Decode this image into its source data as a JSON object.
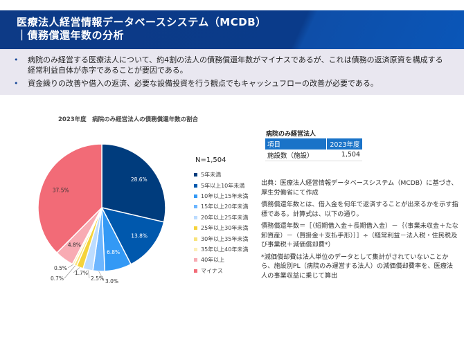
{
  "header": {
    "title_line1": "医療法人経営情報データベースシステム（MCDB）",
    "title_line2": "｜債務償還年数の分析"
  },
  "bullets": [
    "病院のみ経営する医療法人について、約4割の法人の債務償還年数がマイナスであるが、これは債務の返済原資を構成する経常利益自体が赤字であることが要因である。",
    "資金繰りの改善や借入の返済、必要な設備投資を行う観点でもキャッシュフローの改善が必要である。"
  ],
  "chart_data": {
    "type": "pie",
    "title": "2023年度　病院のみ経営法人の債務償還年数の割合",
    "annotation": "N=1,504",
    "categories": [
      "5年未満",
      "5年以上10年未満",
      "10年以上15年未満",
      "15年以上20年未満",
      "20年以上25年未満",
      "25年以上30年未満",
      "30年以上35年未満",
      "35年以上40年未満",
      "40年以上",
      "マイナス"
    ],
    "values": [
      28.6,
      13.8,
      6.8,
      3.0,
      2.5,
      1.7,
      0.7,
      0.5,
      4.8,
      37.5
    ],
    "labels": [
      "28.6%",
      "13.8%",
      "6.8%",
      "3.0%",
      "2.5%",
      "1.7%",
      "0.7%",
      "0.5%",
      "4.8%",
      "37.5%"
    ],
    "colors": [
      "#003c7d",
      "#0058ad",
      "#3399f5",
      "#6db6ff",
      "#bcdcff",
      "#f5d33a",
      "#f8e37c",
      "#fcefb8",
      "#f8abb3",
      "#f26b77"
    ],
    "legend": "right"
  },
  "table": {
    "title": "病院のみ経営法人",
    "headers": [
      "項目",
      "2023年度"
    ],
    "rows": [
      [
        "施設数（施設）",
        "1,504"
      ]
    ]
  },
  "notes": [
    "出典：医療法人経営情報データベースシステム（MCDB）に基づき、厚生労働省にて作成",
    "債務償還年数とは、借入金を何年で返済することが出来るかを示す指標である。計算式は、以下の通り。",
    "債務償還年数＝［（短期借入金＋長期借入金）－｛（事業未収金＋たな卸資産）－（買掛金＋支払手形）｝］÷（経常利益－法人税・住民税及び事業税＋減価償却費*）",
    "*減価償却費は法人単位のデータとして集計がされていないことから、施設別PL（病院のみ運営する法人）の減価償却費率を、医療法人の事業収益に乗じて算出"
  ]
}
